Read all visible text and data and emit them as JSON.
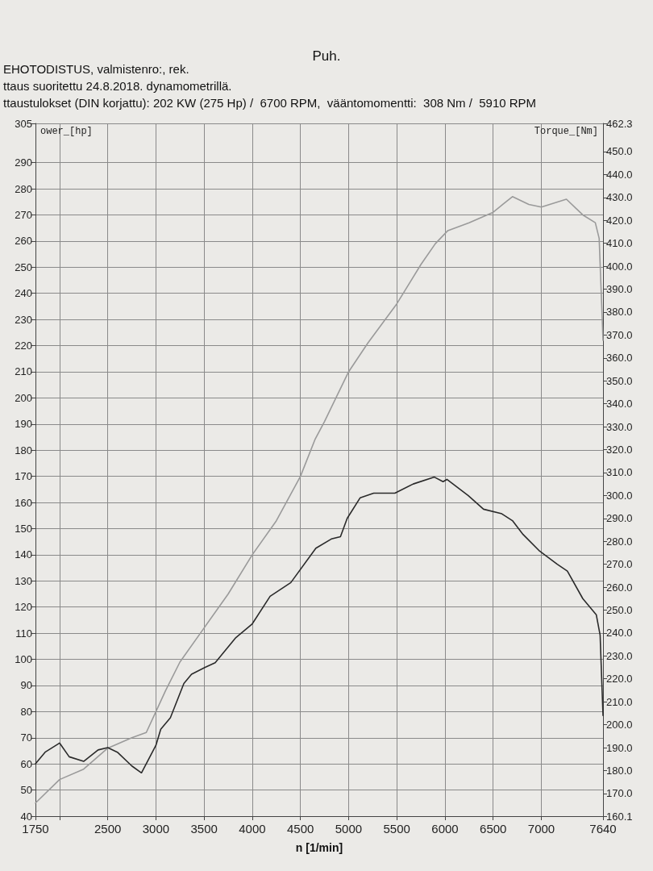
{
  "chart_data": {
    "type": "line",
    "title": "Puh.",
    "annotations": [
      "EHOTODISTUS, valmistenro:, rek.",
      "ttaus suoritettu 24.8.2018. dynamometrillä.",
      "ttaustulokset (DIN korjattu): 202 KW (275 Hp) /  6700 RPM,  vääntomomentti:  308 Nm /  5910 RPM"
    ],
    "xlabel": "n [1/min]",
    "ylabel": "ower_[hp]",
    "y2label": "Torque_[Nm]",
    "xlim": [
      1750,
      7640
    ],
    "xticks": [
      1750,
      {
        "value": 2000,
        "label": null
      },
      2500,
      3000,
      3500,
      4000,
      4500,
      5000,
      5500,
      6000,
      6500,
      7000,
      7640
    ],
    "ylim": [
      40,
      305
    ],
    "yticks": [
      40,
      50,
      60,
      70,
      80,
      90,
      100,
      110,
      120,
      130,
      140,
      150,
      160,
      170,
      180,
      190,
      200,
      210,
      220,
      230,
      240,
      250,
      260,
      270,
      280,
      290,
      305
    ],
    "y2lim": [
      160.1,
      462.3
    ],
    "y2ticks": [
      {
        "value": 160.1,
        "label": "160.1"
      },
      {
        "value": 170,
        "label": "170.0"
      },
      {
        "value": 180,
        "label": "180.0"
      },
      {
        "value": 190,
        "label": "190.0"
      },
      {
        "value": 200,
        "label": "200.0"
      },
      {
        "value": 210,
        "label": "210.0"
      },
      {
        "value": 220,
        "label": "220.0"
      },
      {
        "value": 230,
        "label": "230.0"
      },
      {
        "value": 240,
        "label": "240.0"
      },
      {
        "value": 250,
        "label": "250.0"
      },
      {
        "value": 260,
        "label": "260.0"
      },
      {
        "value": 270,
        "label": "270.0"
      },
      {
        "value": 280,
        "label": "280.0"
      },
      {
        "value": 290,
        "label": "290.0"
      },
      {
        "value": 300,
        "label": "300.0"
      },
      {
        "value": 310,
        "label": "310.0"
      },
      {
        "value": 320,
        "label": "320.0"
      },
      {
        "value": 330,
        "label": "330.0"
      },
      {
        "value": 340,
        "label": "340.0"
      },
      {
        "value": 350,
        "label": "350.0"
      },
      {
        "value": 360,
        "label": "360.0"
      },
      {
        "value": 370,
        "label": "370.0"
      },
      {
        "value": 380,
        "label": "380.0"
      },
      {
        "value": 390,
        "label": "390.0"
      },
      {
        "value": 400,
        "label": "400.0"
      },
      {
        "value": 410,
        "label": "410.0"
      },
      {
        "value": 420,
        "label": "420.0"
      },
      {
        "value": 430,
        "label": "430.0"
      },
      {
        "value": 440,
        "label": "440.0"
      },
      {
        "value": 450,
        "label": "450.0"
      },
      {
        "value": 462.3,
        "label": "462.3"
      }
    ],
    "grid": true,
    "marker": "none",
    "line_style": "solid",
    "series": [
      {
        "color": "#9a9a9a",
        "x": [
          1750,
          2000,
          2250,
          2500,
          2750,
          2900,
          3000,
          3100,
          3250,
          3500,
          3750,
          4000,
          4250,
          4500,
          4650,
          4750,
          5000,
          5200,
          5500,
          5750,
          5900,
          6030,
          6250,
          6500,
          6600,
          6700,
          6870,
          7000,
          7260,
          7430,
          7560,
          7600,
          7640
        ],
        "values": [
          45,
          54,
          58,
          66,
          70,
          72,
          80,
          88,
          99,
          112,
          125,
          140,
          153,
          170,
          184,
          191,
          210,
          221,
          236,
          251,
          259,
          264,
          267,
          271,
          274,
          277,
          274,
          273,
          276,
          270,
          267,
          261,
          222
        ]
      },
      {
        "color": "#2a2a2a",
        "axis": "y2",
        "x": [
          1750,
          1850,
          2000,
          2100,
          2250,
          2400,
          2500,
          2600,
          2750,
          2850,
          3000,
          3050,
          3150,
          3290,
          3370,
          3510,
          3615,
          3830,
          4000,
          4185,
          4400,
          4660,
          4820,
          4915,
          4985,
          5120,
          5260,
          5480,
          5670,
          5890,
          5980,
          6020,
          6240,
          6400,
          6590,
          6700,
          6810,
          6975,
          7165,
          7270,
          7430,
          7570,
          7610,
          7640
        ],
        "values": [
          183,
          188,
          192,
          186,
          184,
          189,
          190,
          188,
          182,
          179,
          191,
          198,
          203,
          218,
          222,
          225,
          227,
          238,
          244,
          256,
          262,
          277,
          281,
          282,
          290,
          299,
          301,
          301,
          305,
          308,
          306,
          307,
          300,
          294,
          292,
          289,
          283,
          276,
          270,
          267,
          255,
          248,
          239,
          204
        ]
      }
    ]
  }
}
